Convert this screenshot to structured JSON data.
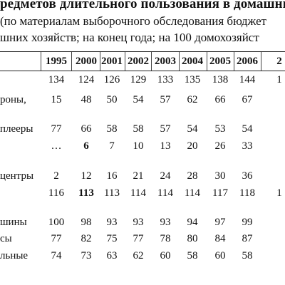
{
  "title": "редметов длительного пользования в домашни",
  "subtitle_line1": "(по материалам выборочного обследования бюджет",
  "subtitle_line2": "шних хозяйств; на конец года; на 100 домохозяйст",
  "table": {
    "headers": [
      "1995",
      "2000",
      "2001",
      "2002",
      "2003",
      "2004",
      "2005",
      "2006",
      "2"
    ],
    "rows": [
      {
        "label": "",
        "values": [
          "134",
          "124",
          "126",
          "129",
          "133",
          "135",
          "138",
          "144",
          "1"
        ],
        "bold": []
      },
      {
        "label": "роны,",
        "values": [
          "15",
          "48",
          "50",
          "54",
          "57",
          "62",
          "66",
          "67",
          ""
        ],
        "bold": []
      },
      {
        "label": "плееры",
        "values": [
          "77",
          "66",
          "58",
          "58",
          "57",
          "54",
          "53",
          "54",
          ""
        ],
        "bold": []
      },
      {
        "label": "",
        "values": [
          "…",
          "6",
          "7",
          "10",
          "13",
          "20",
          "26",
          "33",
          ""
        ],
        "bold": [
          1
        ]
      },
      {
        "label": "центры",
        "values": [
          "2",
          "12",
          "16",
          "21",
          "24",
          "28",
          "30",
          "36",
          ""
        ],
        "bold": []
      },
      {
        "label": "",
        "values": [
          "116",
          "113",
          "113",
          "114",
          "114",
          "114",
          "117",
          "118",
          "1"
        ],
        "bold": [
          1
        ]
      },
      {
        "label": "шины",
        "values": [
          "100",
          "98",
          "93",
          "93",
          "93",
          "94",
          "97",
          "99",
          ""
        ],
        "bold": []
      },
      {
        "label": "сы",
        "values": [
          "77",
          "82",
          "75",
          "77",
          "78",
          "80",
          "84",
          "87",
          ""
        ],
        "bold": []
      },
      {
        "label": "льные",
        "values": [
          "74",
          "73",
          "63",
          "62",
          "60",
          "58",
          "60",
          "58",
          ""
        ],
        "bold": []
      }
    ]
  }
}
